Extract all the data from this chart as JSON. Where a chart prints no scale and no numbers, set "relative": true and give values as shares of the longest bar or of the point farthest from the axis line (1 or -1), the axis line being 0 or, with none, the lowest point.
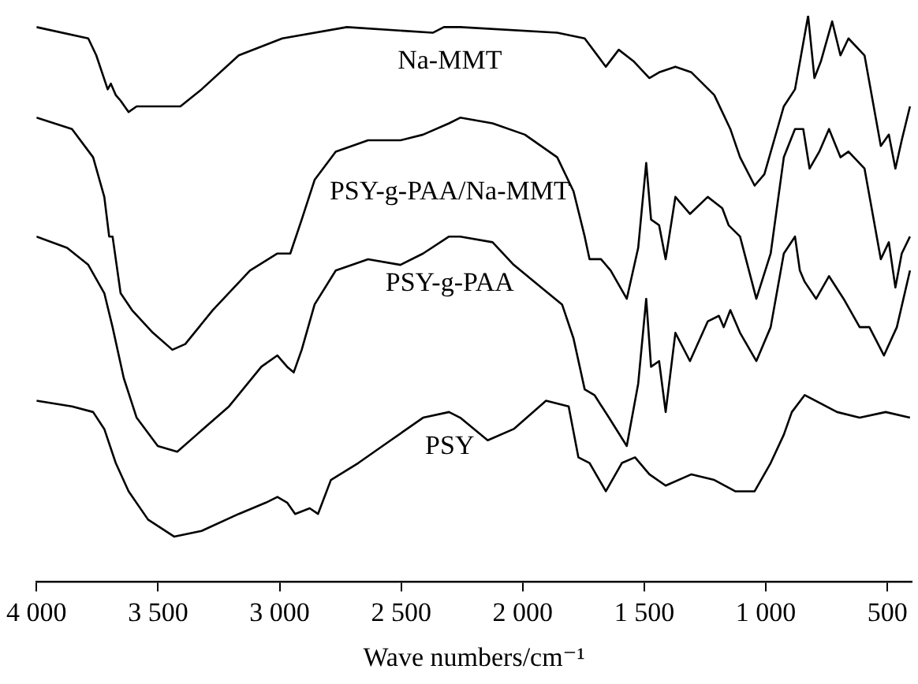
{
  "chart_data": {
    "type": "line",
    "relative": true,
    "xlabel": "Wave numbers/cm⁻¹",
    "xlim": [
      4000,
      400
    ],
    "xticks": [
      {
        "value": 4000,
        "label": "4 000"
      },
      {
        "value": 3500,
        "label": "3 500"
      },
      {
        "value": 3000,
        "label": "3 000"
      },
      {
        "value": 2500,
        "label": "2 500"
      },
      {
        "value": 2000,
        "label": "2 000"
      },
      {
        "value": 1500,
        "label": "1 500"
      },
      {
        "value": 1000,
        "label": "1 000"
      },
      500
    ],
    "legend": false,
    "grid": false,
    "marker": "none",
    "line_style": "solid",
    "series": [
      {
        "name": "Na-MMT",
        "color": "#000000",
        "x": [
          4000,
          3787,
          3754,
          3707,
          3694,
          3674,
          3654,
          3621,
          3588,
          3534,
          3468,
          3408,
          3321,
          3168,
          2989,
          2723,
          2370,
          2324,
          2257,
          1858,
          1745,
          1658,
          1605,
          1545,
          1479,
          1439,
          1372,
          1306,
          1212,
          1146,
          1106,
          1046,
          1006,
          946,
          926,
          880,
          826,
          800,
          773,
          727,
          693,
          660,
          594,
          527,
          494,
          467,
          441,
          407
        ],
        "values": [
          0.98,
          0.96,
          0.93,
          0.87,
          0.88,
          0.86,
          0.85,
          0.83,
          0.84,
          0.84,
          0.84,
          0.84,
          0.87,
          0.93,
          0.96,
          0.98,
          0.97,
          0.98,
          0.98,
          0.97,
          0.96,
          0.91,
          0.94,
          0.92,
          0.89,
          0.9,
          0.91,
          0.9,
          0.86,
          0.8,
          0.75,
          0.7,
          0.72,
          0.81,
          0.84,
          0.87,
          1,
          0.89,
          0.92,
          0.99,
          0.93,
          0.96,
          0.93,
          0.77,
          0.79,
          0.73,
          0.78,
          0.84
        ]
      },
      {
        "name": "PSY-g-PAA/Na-MMT",
        "color": "#000000",
        "x": [
          4000,
          3854,
          3767,
          3721,
          3701,
          3687,
          3654,
          3607,
          3521,
          3441,
          3388,
          3275,
          3122,
          3009,
          2956,
          2909,
          2856,
          2769,
          2636,
          2503,
          2410,
          2303,
          2257,
          2124,
          1991,
          1858,
          1791,
          1745,
          1725,
          1678,
          1638,
          1572,
          1525,
          1492,
          1472,
          1439,
          1412,
          1372,
          1312,
          1239,
          1179,
          1153,
          1106,
          1039,
          980,
          926,
          880,
          846,
          820,
          780,
          740,
          693,
          660,
          594,
          527,
          494,
          467,
          441,
          407
        ],
        "values": [
          0.82,
          0.8,
          0.75,
          0.68,
          0.61,
          0.61,
          0.51,
          0.48,
          0.44,
          0.41,
          0.42,
          0.48,
          0.55,
          0.58,
          0.58,
          0.64,
          0.71,
          0.76,
          0.78,
          0.78,
          0.79,
          0.81,
          0.82,
          0.81,
          0.79,
          0.75,
          0.69,
          0.61,
          0.57,
          0.57,
          0.55,
          0.5,
          0.59,
          0.74,
          0.64,
          0.63,
          0.57,
          0.68,
          0.65,
          0.68,
          0.66,
          0.63,
          0.61,
          0.5,
          0.58,
          0.75,
          0.8,
          0.8,
          0.73,
          0.76,
          0.8,
          0.75,
          0.76,
          0.73,
          0.57,
          0.6,
          0.52,
          0.58,
          0.61
        ]
      },
      {
        "name": "PSY-g-PAA",
        "color": "#000000",
        "x": [
          4000,
          3874,
          3787,
          3721,
          3687,
          3641,
          3588,
          3501,
          3421,
          3341,
          3208,
          3075,
          3009,
          2969,
          2942,
          2909,
          2856,
          2769,
          2636,
          2503,
          2410,
          2303,
          2257,
          2124,
          2037,
          1924,
          1838,
          1791,
          1745,
          1705,
          1645,
          1572,
          1525,
          1492,
          1472,
          1439,
          1412,
          1372,
          1312,
          1239,
          1193,
          1173,
          1146,
          1106,
          1039,
          980,
          926,
          880,
          860,
          840,
          793,
          740,
          680,
          614,
          574,
          514,
          461,
          407
        ],
        "values": [
          0.61,
          0.59,
          0.56,
          0.51,
          0.45,
          0.36,
          0.29,
          0.24,
          0.23,
          0.26,
          0.31,
          0.38,
          0.4,
          0.38,
          0.37,
          0.41,
          0.49,
          0.55,
          0.57,
          0.56,
          0.58,
          0.61,
          0.61,
          0.6,
          0.56,
          0.52,
          0.49,
          0.43,
          0.34,
          0.33,
          0.29,
          0.24,
          0.35,
          0.5,
          0.38,
          0.39,
          0.3,
          0.44,
          0.39,
          0.46,
          0.47,
          0.45,
          0.48,
          0.44,
          0.39,
          0.45,
          0.58,
          0.61,
          0.55,
          0.53,
          0.5,
          0.54,
          0.5,
          0.45,
          0.45,
          0.4,
          0.45,
          0.55
        ]
      },
      {
        "name": "PSY",
        "color": "#000000",
        "x": [
          4000,
          3854,
          3767,
          3721,
          3674,
          3621,
          3541,
          3434,
          3321,
          3168,
          3056,
          3009,
          2969,
          2936,
          2876,
          2842,
          2789,
          2676,
          2543,
          2410,
          2303,
          2257,
          2144,
          2037,
          1904,
          1811,
          1771,
          1725,
          1658,
          1592,
          1538,
          1479,
          1412,
          1306,
          1212,
          1126,
          1046,
          980,
          926,
          893,
          840,
          707,
          614,
          507,
          407
        ],
        "values": [
          0.32,
          0.31,
          0.3,
          0.27,
          0.21,
          0.16,
          0.11,
          0.08,
          0.09,
          0.12,
          0.14,
          0.15,
          0.14,
          0.12,
          0.13,
          0.12,
          0.18,
          0.21,
          0.25,
          0.29,
          0.3,
          0.29,
          0.25,
          0.27,
          0.32,
          0.31,
          0.22,
          0.21,
          0.16,
          0.21,
          0.22,
          0.19,
          0.17,
          0.19,
          0.18,
          0.16,
          0.16,
          0.21,
          0.26,
          0.3,
          0.33,
          0.3,
          0.29,
          0.3,
          0.29
        ]
      }
    ]
  }
}
